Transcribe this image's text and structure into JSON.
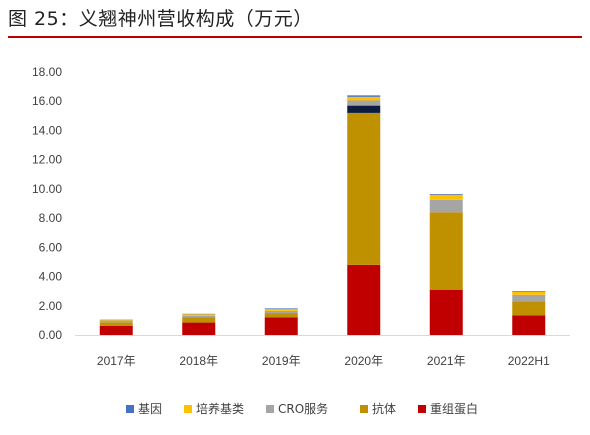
{
  "figure": {
    "title": "图 25：义翘神州营收构成（万元）"
  },
  "chart_data": {
    "type": "bar",
    "stacked": true,
    "title": "",
    "xlabel": "",
    "ylabel": "",
    "ylim": [
      0,
      18
    ],
    "ytick_values": [
      0,
      2,
      4,
      6,
      8,
      10,
      12,
      14,
      16,
      18
    ],
    "ytick_labels": [
      "0.00",
      "2.00",
      "4.00",
      "6.00",
      "8.00",
      "10.00",
      "12.00",
      "14.00",
      "16.00",
      "18.00"
    ],
    "categories": [
      "2017年",
      "2018年",
      "2019年",
      "2020年",
      "2021年",
      "2022H1"
    ],
    "grid": false,
    "legend_position": "bottom",
    "series": [
      {
        "name": "重组蛋白",
        "color": "#c00000",
        "values": [
          0.62,
          0.85,
          1.2,
          4.8,
          3.1,
          1.35
        ]
      },
      {
        "name": "抗体",
        "color": "#bf9000",
        "values": [
          0.25,
          0.35,
          0.3,
          10.4,
          5.3,
          0.95
        ]
      },
      {
        "name": "CRO服务",
        "color": "#a5a5a5",
        "values": [
          0.12,
          0.12,
          0.15,
          0.35,
          0.85,
          0.45
        ]
      },
      {
        "name": "培养基类",
        "color": "#ffc000",
        "values": [
          0.04,
          0.1,
          0.12,
          0.25,
          0.35,
          0.2
        ]
      },
      {
        "name": "基因",
        "color": "#4472c4",
        "values": [
          0.02,
          0.03,
          0.05,
          0.1,
          0.05,
          0.05
        ]
      }
    ],
    "extra_segments": [
      {
        "category": "2020年",
        "color": "#0d1b3e",
        "value": 0.5,
        "after_series": "抗体"
      }
    ],
    "legend_order": [
      "基因",
      "培养基类",
      "CRO服务",
      "抗体",
      "重组蛋白"
    ]
  }
}
